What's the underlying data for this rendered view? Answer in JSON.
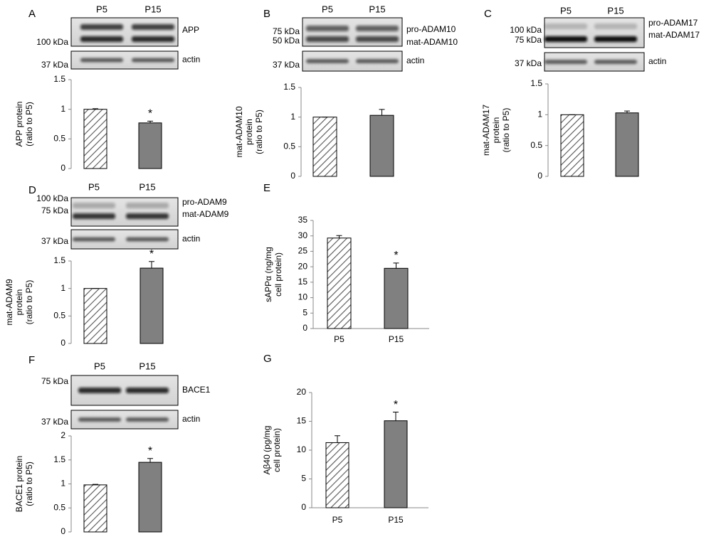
{
  "chart_data": [
    {
      "type": "bar",
      "panel": "A",
      "lanes": [
        "P5",
        "P15"
      ],
      "blot": {
        "markers": [
          "100 kDa"
        ],
        "bands": [
          "APP"
        ]
      },
      "actin": {
        "marker": "37 kDa",
        "label": "actin"
      },
      "ylabel": [
        "APP protein",
        "(ratio to P5)"
      ],
      "categories": [
        null,
        null
      ],
      "values": [
        1.0,
        0.77
      ],
      "errors": [
        0.01,
        0.03
      ],
      "colors": [
        "#ffffff",
        "#808080"
      ],
      "hatched": [
        true,
        false
      ],
      "annotations": [
        null,
        "*"
      ],
      "ylim": [
        0,
        1.5
      ],
      "yticks": [
        0,
        0.5,
        1,
        1.5
      ]
    },
    {
      "type": "bar",
      "panel": "B",
      "lanes": [
        "P5",
        "P15"
      ],
      "blot": {
        "markers": [
          "75 kDa",
          "50 kDa"
        ],
        "bands": [
          "pro-ADAM10",
          "mat-ADAM10"
        ]
      },
      "actin": {
        "marker": "37 kDa",
        "label": "actin"
      },
      "ylabel": [
        "mat-ADAM10",
        "protein",
        "(ratio to P5)"
      ],
      "categories": [
        null,
        null
      ],
      "values": [
        1.0,
        1.03
      ],
      "errors": [
        0,
        0.1
      ],
      "colors": [
        "#ffffff",
        "#808080"
      ],
      "hatched": [
        true,
        false
      ],
      "annotations": [
        null,
        null
      ],
      "ylim": [
        0,
        1.5
      ],
      "yticks": [
        0,
        0.5,
        1,
        1.5
      ]
    },
    {
      "type": "bar",
      "panel": "C",
      "lanes": [
        "P5",
        "P15"
      ],
      "blot": {
        "markers": [
          "100 kDa",
          "75 kDa"
        ],
        "bands": [
          "pro-ADAM17",
          "mat-ADAM17"
        ]
      },
      "actin": {
        "marker": "37 kDa",
        "label": "actin"
      },
      "ylabel": [
        "mat-ADAM17",
        "protein",
        "(ratio to P5)"
      ],
      "categories": [
        null,
        null
      ],
      "values": [
        1.0,
        1.03
      ],
      "errors": [
        0,
        0.03
      ],
      "colors": [
        "#ffffff",
        "#808080"
      ],
      "hatched": [
        true,
        false
      ],
      "annotations": [
        null,
        null
      ],
      "ylim": [
        0,
        1.5
      ],
      "yticks": [
        0,
        0.5,
        1,
        1.5
      ]
    },
    {
      "type": "bar",
      "panel": "D",
      "lanes": [
        "P5",
        "P15"
      ],
      "blot": {
        "markers": [
          "100 kDa",
          "75 kDa"
        ],
        "bands": [
          "pro-ADAM9",
          "mat-ADAM9"
        ]
      },
      "actin": {
        "marker": "37 kDa",
        "label": "actin"
      },
      "ylabel": [
        "mat-ADAM9",
        "protein",
        "(ratio to P5)"
      ],
      "categories": [
        null,
        null
      ],
      "values": [
        1.0,
        1.37
      ],
      "errors": [
        0,
        0.12
      ],
      "colors": [
        "#ffffff",
        "#808080"
      ],
      "hatched": [
        true,
        false
      ],
      "annotations": [
        null,
        "*"
      ],
      "ylim": [
        0,
        1.5
      ],
      "yticks": [
        0,
        0.5,
        1,
        1.5
      ]
    },
    {
      "type": "bar",
      "panel": "E",
      "ylabel": [
        "sAPPα (ng/mg",
        "cell protein)"
      ],
      "categories": [
        "P5",
        "P15"
      ],
      "values": [
        29.3,
        19.5
      ],
      "errors": [
        0.8,
        1.7
      ],
      "colors": [
        "#ffffff",
        "#808080"
      ],
      "hatched": [
        true,
        false
      ],
      "annotations": [
        null,
        "*"
      ],
      "ylim": [
        0,
        35
      ],
      "yticks": [
        0,
        5,
        10,
        15,
        20,
        25,
        30,
        35
      ]
    },
    {
      "type": "bar",
      "panel": "F",
      "lanes": [
        "P5",
        "P15"
      ],
      "blot": {
        "markers": [
          "75 kDa"
        ],
        "bands": [
          "BACE1"
        ]
      },
      "actin": {
        "marker": "37 kDa",
        "label": "actin"
      },
      "ylabel": [
        "BACE1 protein",
        "(ratio to P5)"
      ],
      "categories": [
        null,
        null
      ],
      "values": [
        0.98,
        1.45
      ],
      "errors": [
        0.01,
        0.08
      ],
      "colors": [
        "#ffffff",
        "#808080"
      ],
      "hatched": [
        true,
        false
      ],
      "annotations": [
        null,
        "*"
      ],
      "ylim": [
        0,
        2
      ],
      "yticks": [
        0,
        0.5,
        1,
        1.5,
        2
      ]
    },
    {
      "type": "bar",
      "panel": "G",
      "ylabel": [
        "Aβ40 (pg/mg",
        "cell protein)"
      ],
      "categories": [
        "P5",
        "P15"
      ],
      "values": [
        11.3,
        15.1
      ],
      "errors": [
        1.2,
        1.5
      ],
      "colors": [
        "#ffffff",
        "#808080"
      ],
      "hatched": [
        true,
        false
      ],
      "annotations": [
        null,
        "*"
      ],
      "ylim": [
        0,
        20
      ],
      "yticks": [
        0,
        5,
        10,
        15,
        20
      ]
    }
  ]
}
